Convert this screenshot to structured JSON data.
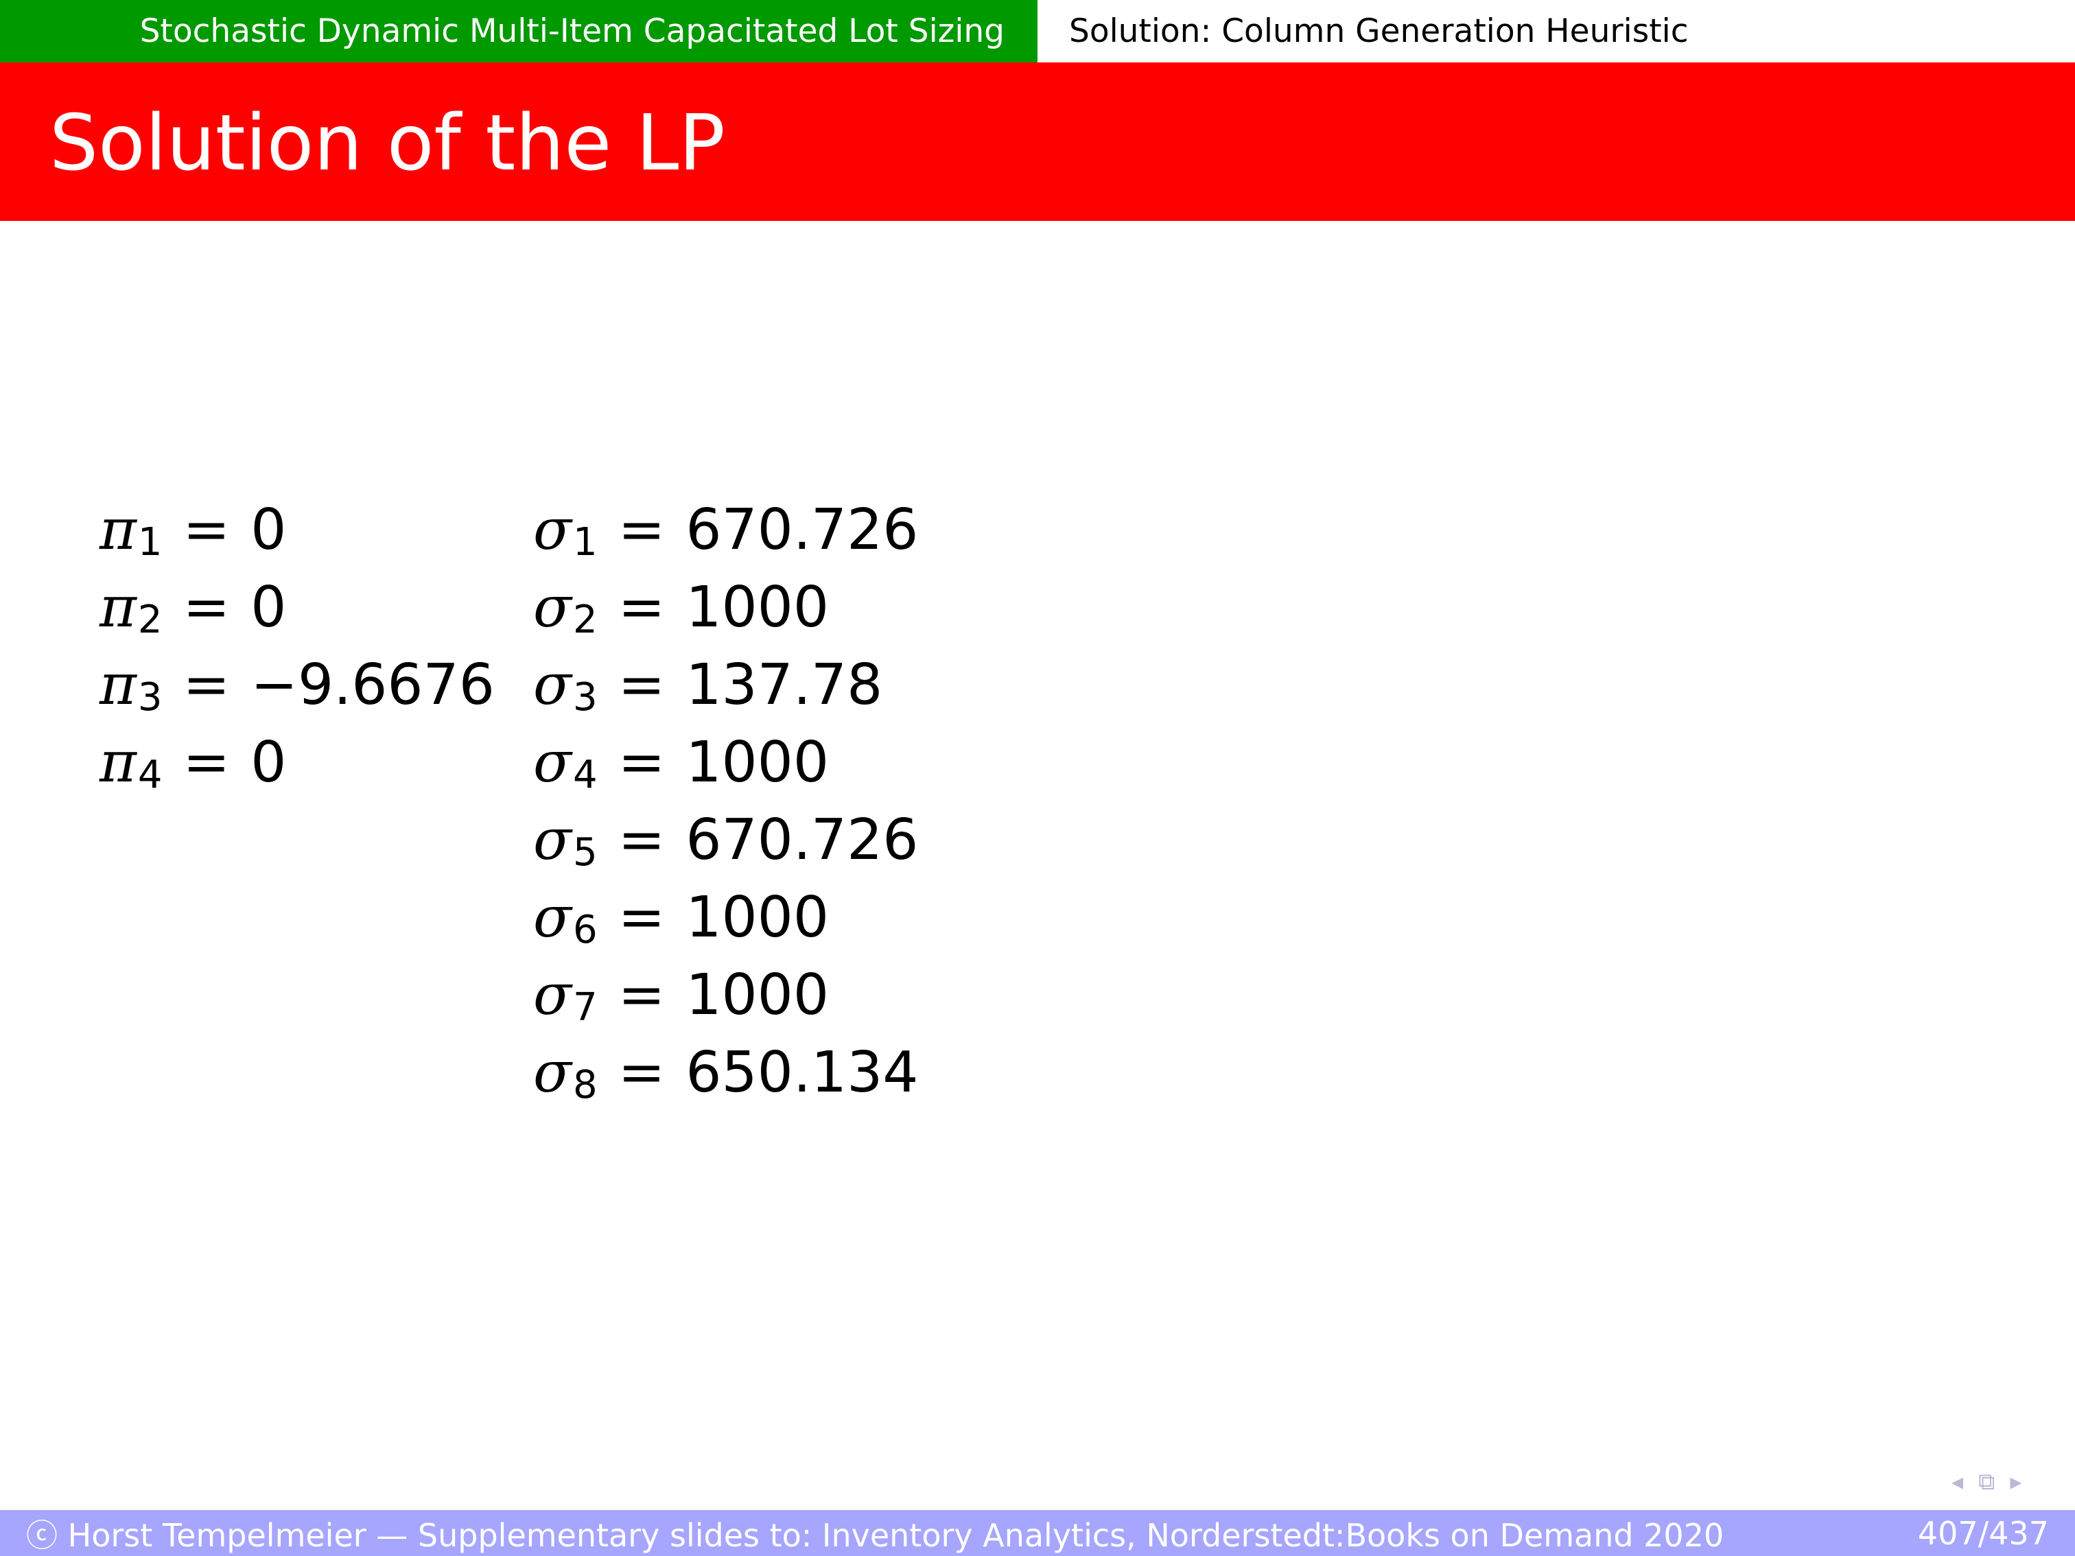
{
  "header": {
    "section": "Stochastic Dynamic Multi-Item Capacitated Lot Sizing",
    "subsection": "Solution: Column Generation Heuristic"
  },
  "slide": {
    "title": "Solution of the LP"
  },
  "pi": [
    {
      "symbol": "π",
      "index": "1",
      "value": "0"
    },
    {
      "symbol": "π",
      "index": "2",
      "value": "0"
    },
    {
      "symbol": "π",
      "index": "3",
      "value": "−9.6676"
    },
    {
      "symbol": "π",
      "index": "4",
      "value": "0"
    }
  ],
  "sigma": [
    {
      "symbol": "σ",
      "index": "1",
      "value": "670.726"
    },
    {
      "symbol": "σ",
      "index": "2",
      "value": "1000"
    },
    {
      "symbol": "σ",
      "index": "3",
      "value": "137.78"
    },
    {
      "symbol": "σ",
      "index": "4",
      "value": "1000"
    },
    {
      "symbol": "σ",
      "index": "5",
      "value": "670.726"
    },
    {
      "symbol": "σ",
      "index": "6",
      "value": "1000"
    },
    {
      "symbol": "σ",
      "index": "7",
      "value": "1000"
    },
    {
      "symbol": "σ",
      "index": "8",
      "value": "650.134"
    }
  ],
  "equals": "=",
  "footer": {
    "text": "ⓒ Horst Tempelmeier — Supplementary slides to: Inventory Analytics, Norderstedt:Books on Demand 2020",
    "page": "407/437"
  },
  "colors": {
    "section_bg": "#009900",
    "title_bg": "#ff0000",
    "footer_bg": "#a6a6ff"
  }
}
